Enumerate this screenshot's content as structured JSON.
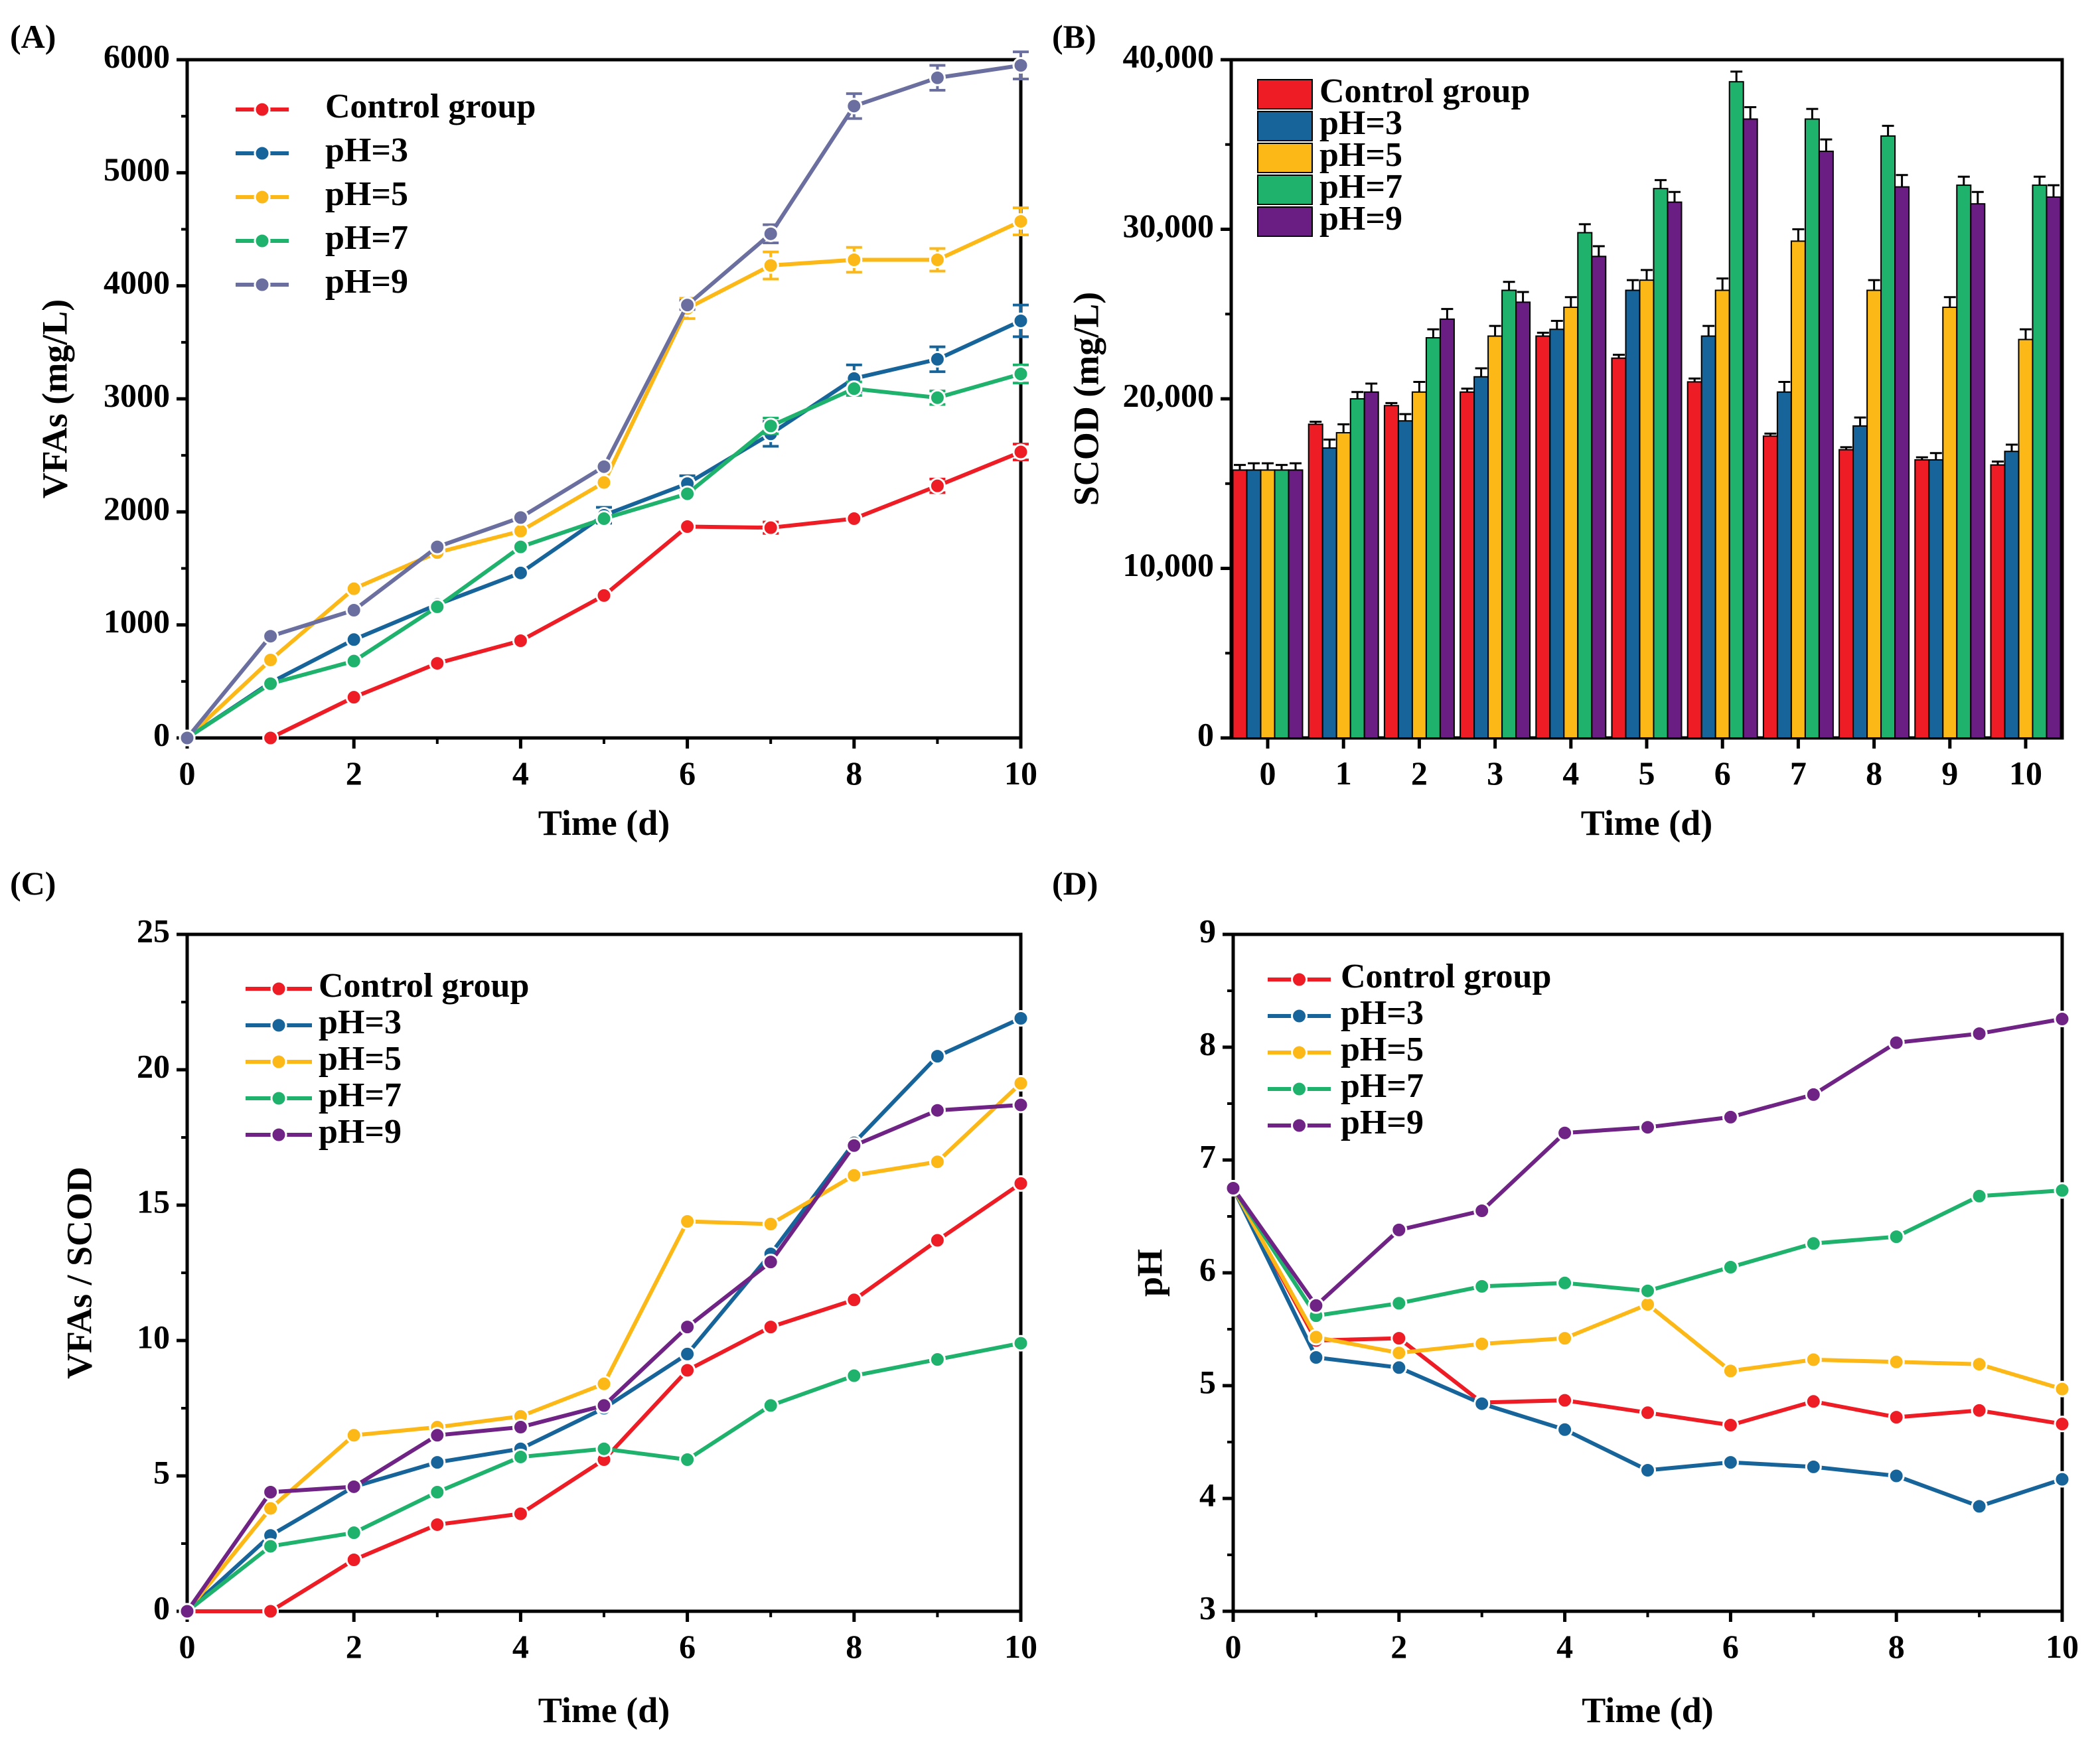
{
  "colors": {
    "control": "#ee1c25",
    "ph3": "#17649a",
    "ph5": "#fbb817",
    "ph7": "#1fb26c",
    "ph9": "#6a6f9f",
    "ph9_bar": "#6a1d82",
    "ph9_line_d": "#6f2384"
  },
  "chart_data": [
    {
      "panel": "(A)",
      "type": "line",
      "xlabel": "Time (d)",
      "ylabel": "VFAs (mg/L)",
      "xlim": [
        0,
        10
      ],
      "ylim": [
        0,
        6000
      ],
      "xticks": [
        "0",
        "2",
        "4",
        "6",
        "8",
        "10"
      ],
      "yticks": [
        "0",
        "1000",
        "2000",
        "3000",
        "4000",
        "5000",
        "6000"
      ],
      "legend_position": "top-left",
      "series": [
        {
          "name": "Control group",
          "key": "control",
          "x": [
            1,
            2,
            3,
            4,
            5,
            6,
            7,
            8,
            9,
            10
          ],
          "values": [
            0,
            360,
            660,
            860,
            1260,
            1870,
            1860,
            1940,
            2230,
            2530
          ],
          "err": [
            0,
            0,
            0,
            0,
            0,
            0,
            50,
            0,
            60,
            70
          ]
        },
        {
          "name": "pH=3",
          "key": "ph3",
          "x": [
            0,
            1,
            2,
            3,
            4,
            5,
            6,
            7,
            8,
            9,
            10
          ],
          "values": [
            0,
            490,
            870,
            1180,
            1460,
            1970,
            2250,
            2690,
            3180,
            3350,
            3690
          ],
          "err": [
            0,
            0,
            0,
            0,
            0,
            70,
            70,
            110,
            120,
            110,
            140
          ]
        },
        {
          "name": "pH=5",
          "key": "ph5",
          "x": [
            0,
            1,
            2,
            3,
            4,
            5,
            6,
            7,
            8,
            9,
            10
          ],
          "values": [
            0,
            690,
            1320,
            1640,
            1830,
            2260,
            3800,
            4180,
            4230,
            4230,
            4570
          ],
          "err": [
            0,
            0,
            0,
            0,
            0,
            0,
            90,
            120,
            110,
            100,
            120
          ]
        },
        {
          "name": "pH=7",
          "key": "ph7",
          "x": [
            0,
            1,
            2,
            3,
            4,
            5,
            6,
            7,
            8,
            9,
            10
          ],
          "values": [
            0,
            480,
            680,
            1160,
            1690,
            1940,
            2160,
            2760,
            3090,
            3010,
            3220
          ],
          "err": [
            0,
            0,
            0,
            0,
            0,
            0,
            0,
            70,
            60,
            60,
            80
          ]
        },
        {
          "name": "pH=9",
          "key": "ph9",
          "x": [
            0,
            1,
            2,
            3,
            4,
            5,
            6,
            7,
            8,
            9,
            10
          ],
          "values": [
            0,
            900,
            1130,
            1690,
            1950,
            2400,
            3830,
            4460,
            5590,
            5840,
            5950
          ],
          "err": [
            0,
            0,
            0,
            0,
            0,
            0,
            40,
            80,
            110,
            110,
            120
          ]
        }
      ]
    },
    {
      "panel": "(B)",
      "type": "bar",
      "xlabel": "Time (d)",
      "ylabel": "SCOD (mg/L)",
      "categories": [
        "0",
        "1",
        "2",
        "3",
        "4",
        "5",
        "6",
        "7",
        "8",
        "9",
        "10"
      ],
      "ylim": [
        0,
        40000
      ],
      "yticks": [
        "0",
        "10,000",
        "20,000",
        "30,000",
        "40,000"
      ],
      "legend_position": "top-left",
      "series": [
        {
          "name": "Control group",
          "key": "control",
          "values": [
            15800,
            18500,
            19600,
            20400,
            23700,
            22400,
            21000,
            17800,
            17000,
            16400,
            16100
          ],
          "err": [
            300,
            150,
            150,
            200,
            200,
            200,
            200,
            150,
            150,
            150,
            200
          ]
        },
        {
          "name": "pH=3",
          "key": "ph3",
          "values": [
            15800,
            17100,
            18700,
            21300,
            24100,
            26400,
            23700,
            20400,
            18400,
            16400,
            16900
          ],
          "err": [
            400,
            500,
            400,
            500,
            500,
            600,
            600,
            600,
            500,
            400,
            400
          ]
        },
        {
          "name": "pH=5",
          "key": "ph5",
          "values": [
            15800,
            18000,
            20400,
            23700,
            25400,
            27000,
            26400,
            29300,
            26400,
            25400,
            23500
          ],
          "err": [
            400,
            500,
            600,
            600,
            600,
            600,
            700,
            700,
            600,
            600,
            600
          ]
        },
        {
          "name": "pH=7",
          "key": "ph7",
          "values": [
            15800,
            20000,
            23600,
            26400,
            29800,
            32400,
            38700,
            36500,
            35500,
            32600,
            32600
          ],
          "err": [
            300,
            400,
            500,
            500,
            500,
            500,
            600,
            600,
            600,
            500,
            500
          ]
        },
        {
          "name": "pH=9",
          "key": "ph9",
          "values": [
            15800,
            20400,
            24700,
            25700,
            28400,
            31600,
            36500,
            34600,
            32500,
            31500,
            31900
          ],
          "err": [
            400,
            500,
            600,
            600,
            600,
            600,
            700,
            700,
            700,
            700,
            700
          ]
        }
      ]
    },
    {
      "panel": "(C)",
      "type": "line",
      "xlabel": "Time (d)",
      "ylabel": "VFAs / SCOD",
      "xlim": [
        0,
        10
      ],
      "ylim": [
        0,
        25
      ],
      "xticks": [
        "0",
        "2",
        "4",
        "6",
        "8",
        "10"
      ],
      "yticks": [
        "0",
        "5",
        "10",
        "15",
        "20",
        "25"
      ],
      "legend_position": "top-left",
      "series": [
        {
          "name": "Control group",
          "key": "control",
          "x": [
            0,
            1,
            2,
            3,
            4,
            5,
            6,
            7,
            8,
            9,
            10
          ],
          "values": [
            0,
            0,
            1.9,
            3.2,
            3.6,
            5.6,
            8.9,
            10.5,
            11.5,
            13.7,
            15.8
          ]
        },
        {
          "name": "pH=3",
          "key": "ph3",
          "x": [
            0,
            1,
            2,
            3,
            4,
            5,
            6,
            7,
            8,
            9,
            10
          ],
          "values": [
            0,
            2.8,
            4.6,
            5.5,
            6.0,
            7.5,
            9.5,
            13.2,
            17.3,
            20.5,
            21.9
          ]
        },
        {
          "name": "pH=5",
          "key": "ph5",
          "x": [
            0,
            1,
            2,
            3,
            4,
            5,
            6,
            7,
            8,
            9,
            10
          ],
          "values": [
            0,
            3.8,
            6.5,
            6.8,
            7.2,
            8.4,
            14.4,
            14.3,
            16.1,
            16.6,
            19.5
          ]
        },
        {
          "name": "pH=7",
          "key": "ph7",
          "x": [
            0,
            1,
            2,
            3,
            4,
            5,
            6,
            7,
            8,
            9,
            10
          ],
          "values": [
            0,
            2.4,
            2.9,
            4.4,
            5.7,
            6.0,
            5.6,
            7.6,
            8.7,
            9.3,
            9.9
          ]
        },
        {
          "name": "pH=9",
          "key": "ph9_line_d",
          "x": [
            0,
            1,
            2,
            3,
            4,
            5,
            6,
            7,
            8,
            9,
            10
          ],
          "values": [
            0,
            4.4,
            4.6,
            6.5,
            6.8,
            7.6,
            10.5,
            12.9,
            17.2,
            18.5,
            18.7
          ]
        }
      ]
    },
    {
      "panel": "(D)",
      "type": "line",
      "xlabel": "Time (d)",
      "ylabel": "pH",
      "xlim": [
        0,
        10
      ],
      "ylim": [
        3,
        9
      ],
      "xticks": [
        "0",
        "2",
        "4",
        "6",
        "8",
        "10"
      ],
      "yticks": [
        "3",
        "4",
        "5",
        "6",
        "7",
        "8",
        "9"
      ],
      "legend_position": "top-left",
      "series": [
        {
          "name": "Control group",
          "key": "control",
          "x": [
            0,
            1,
            2,
            3,
            4,
            5,
            6,
            7,
            8,
            9,
            10
          ],
          "values": [
            6.75,
            5.4,
            5.42,
            4.85,
            4.87,
            4.76,
            4.65,
            4.86,
            4.72,
            4.78,
            4.66
          ]
        },
        {
          "name": "pH=3",
          "key": "ph3",
          "x": [
            0,
            1,
            2,
            3,
            4,
            5,
            6,
            7,
            8,
            9,
            10
          ],
          "values": [
            6.75,
            5.25,
            5.16,
            4.84,
            4.61,
            4.25,
            4.32,
            4.28,
            4.2,
            3.93,
            4.17
          ]
        },
        {
          "name": "pH=5",
          "key": "ph5",
          "x": [
            0,
            1,
            2,
            3,
            4,
            5,
            6,
            7,
            8,
            9,
            10
          ],
          "values": [
            6.75,
            5.43,
            5.29,
            5.37,
            5.42,
            5.72,
            5.13,
            5.23,
            5.21,
            5.19,
            4.97
          ]
        },
        {
          "name": "pH=7",
          "key": "ph7",
          "x": [
            0,
            1,
            2,
            3,
            4,
            5,
            6,
            7,
            8,
            9,
            10
          ],
          "values": [
            6.75,
            5.62,
            5.73,
            5.88,
            5.91,
            5.84,
            6.05,
            6.26,
            6.32,
            6.68,
            6.73
          ]
        },
        {
          "name": "pH=9",
          "key": "ph9_line_d",
          "x": [
            0,
            1,
            2,
            3,
            4,
            5,
            6,
            7,
            8,
            9,
            10
          ],
          "values": [
            6.75,
            5.71,
            6.38,
            6.55,
            7.24,
            7.29,
            7.38,
            7.58,
            8.04,
            8.12,
            8.25
          ]
        }
      ]
    }
  ]
}
